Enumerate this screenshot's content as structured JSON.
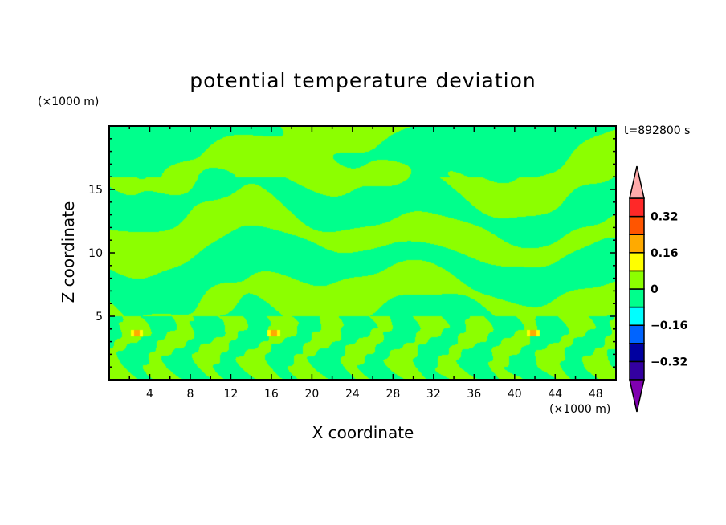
{
  "chart_data": {
    "type": "heatmap",
    "subtype": "filled-contour",
    "title": "potential temperature deviation",
    "xlabel": "X coordinate",
    "ylabel": "Z coordinate",
    "x_unit_label": "(×1000 m)",
    "y_unit_label": "(×1000 m)",
    "time_label": "t=892800 s",
    "xlim": [
      0,
      50
    ],
    "ylim": [
      0,
      20
    ],
    "xticks": [
      4,
      8,
      12,
      16,
      20,
      24,
      28,
      32,
      36,
      40,
      44,
      48
    ],
    "yticks": [
      5,
      10,
      15
    ],
    "dominant_ranges": [
      "-0.08 to 0",
      "0 to 0.08"
    ],
    "colorbar": {
      "levels": [
        -0.4,
        -0.32,
        -0.24,
        -0.16,
        -0.08,
        0,
        0.08,
        0.16,
        0.24,
        0.32,
        0.4
      ],
      "labels": [
        "0.32",
        "0.16",
        "0",
        "-0.16",
        "-0.32"
      ],
      "label_values": [
        0.32,
        0.16,
        0,
        -0.16,
        -0.32
      ],
      "colors": [
        "#3300a0",
        "#0000a0",
        "#0064ff",
        "#00ffff",
        "#00ff8c",
        "#8cff00",
        "#ffff00",
        "#ffaa00",
        "#ff5500",
        "#ff2828"
      ],
      "over_color": "#ffaaaa",
      "under_color": "#8000b0"
    }
  }
}
